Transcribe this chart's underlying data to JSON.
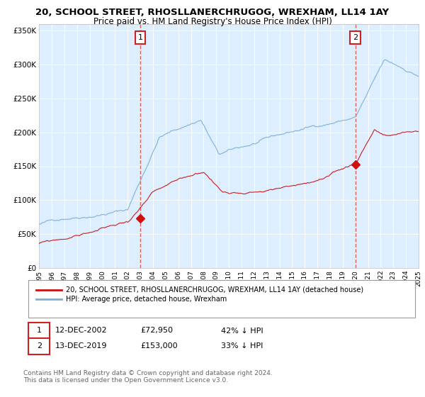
{
  "title": "20, SCHOOL STREET, RHOSLLANERCHRUGOG, WREXHAM, LL14 1AY",
  "subtitle": "Price paid vs. HM Land Registry's House Price Index (HPI)",
  "ylim": [
    0,
    360000
  ],
  "yticks": [
    0,
    50000,
    100000,
    150000,
    200000,
    250000,
    300000,
    350000
  ],
  "ytick_labels": [
    "£0",
    "£50K",
    "£100K",
    "£150K",
    "£200K",
    "£250K",
    "£300K",
    "£350K"
  ],
  "x_start_year": 1995,
  "x_end_year": 2025,
  "hpi_color": "#7bafd4",
  "price_color": "#cc1111",
  "vline_color": "#dd4444",
  "fig_bg": "#ffffff",
  "plot_bg": "#ddeeff",
  "grid_color": "#ffffff",
  "legend_label_price": "20, SCHOOL STREET, RHOSLLANERCHRUGOG, WREXHAM, LL14 1AY (detached house)",
  "legend_label_hpi": "HPI: Average price, detached house, Wrexham",
  "sale1_label": "1",
  "sale1_date": "12-DEC-2002",
  "sale1_price": "£72,950",
  "sale1_hpi": "42% ↓ HPI",
  "sale1_year": 2003.0,
  "sale1_value": 72950,
  "sale2_label": "2",
  "sale2_date": "13-DEC-2019",
  "sale2_price": "£153,000",
  "sale2_hpi": "33% ↓ HPI",
  "sale2_year": 2020.0,
  "sale2_value": 153000,
  "footer": "Contains HM Land Registry data © Crown copyright and database right 2024.\nThis data is licensed under the Open Government Licence v3.0."
}
